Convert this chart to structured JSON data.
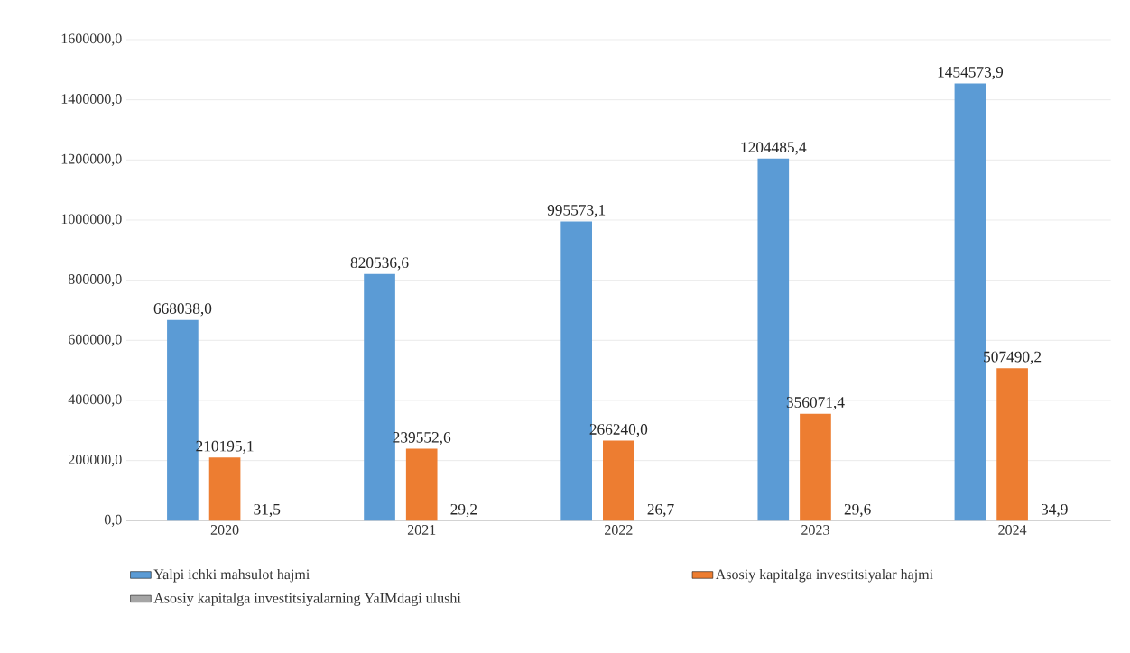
{
  "chart_data": {
    "type": "bar",
    "categories": [
      "2020",
      "2021",
      "2022",
      "2023",
      "2024"
    ],
    "series": [
      {
        "name": "Yalpi ichki mahsulot hajmi",
        "color": "#5b9bd5",
        "values": [
          668038.0,
          820536.6,
          995573.1,
          1204485.4,
          1454573.9
        ],
        "value_labels": [
          "668038,0",
          "820536,6",
          "995573,1",
          "1204485,4",
          "1454573,9"
        ]
      },
      {
        "name": "Asosiy kapitalga investitsiyalar hajmi",
        "color": "#ed7d31",
        "values": [
          210195.1,
          239552.6,
          266240.0,
          356071.4,
          507490.2
        ],
        "value_labels": [
          "210195,1",
          "239552,6",
          "266240,0",
          "356071,4",
          "507490,2"
        ]
      },
      {
        "name": "Asosiy kapitalga investitsiyalarning YaIMdagi ulushi",
        "color": "#a5a5a5",
        "values": [
          31.5,
          29.2,
          26.7,
          29.6,
          34.9
        ],
        "value_labels": [
          "31,5",
          "29,2",
          "26,7",
          "29,6",
          "34,9"
        ]
      }
    ],
    "ylim": [
      0,
      1600000
    ],
    "yticks": [
      {
        "value": 0,
        "label": "0,0"
      },
      {
        "value": 200000,
        "label": "200000,0"
      },
      {
        "value": 400000,
        "label": "400000,0"
      },
      {
        "value": 600000,
        "label": "600000,0"
      },
      {
        "value": 800000,
        "label": "800000,0"
      },
      {
        "value": 1000000,
        "label": "1000000,0"
      },
      {
        "value": 1200000,
        "label": "1200000,0"
      },
      {
        "value": 1400000,
        "label": "1400000,0"
      },
      {
        "value": 1600000,
        "label": "1600000,0"
      }
    ],
    "grid": "y",
    "legend": "bottom"
  }
}
